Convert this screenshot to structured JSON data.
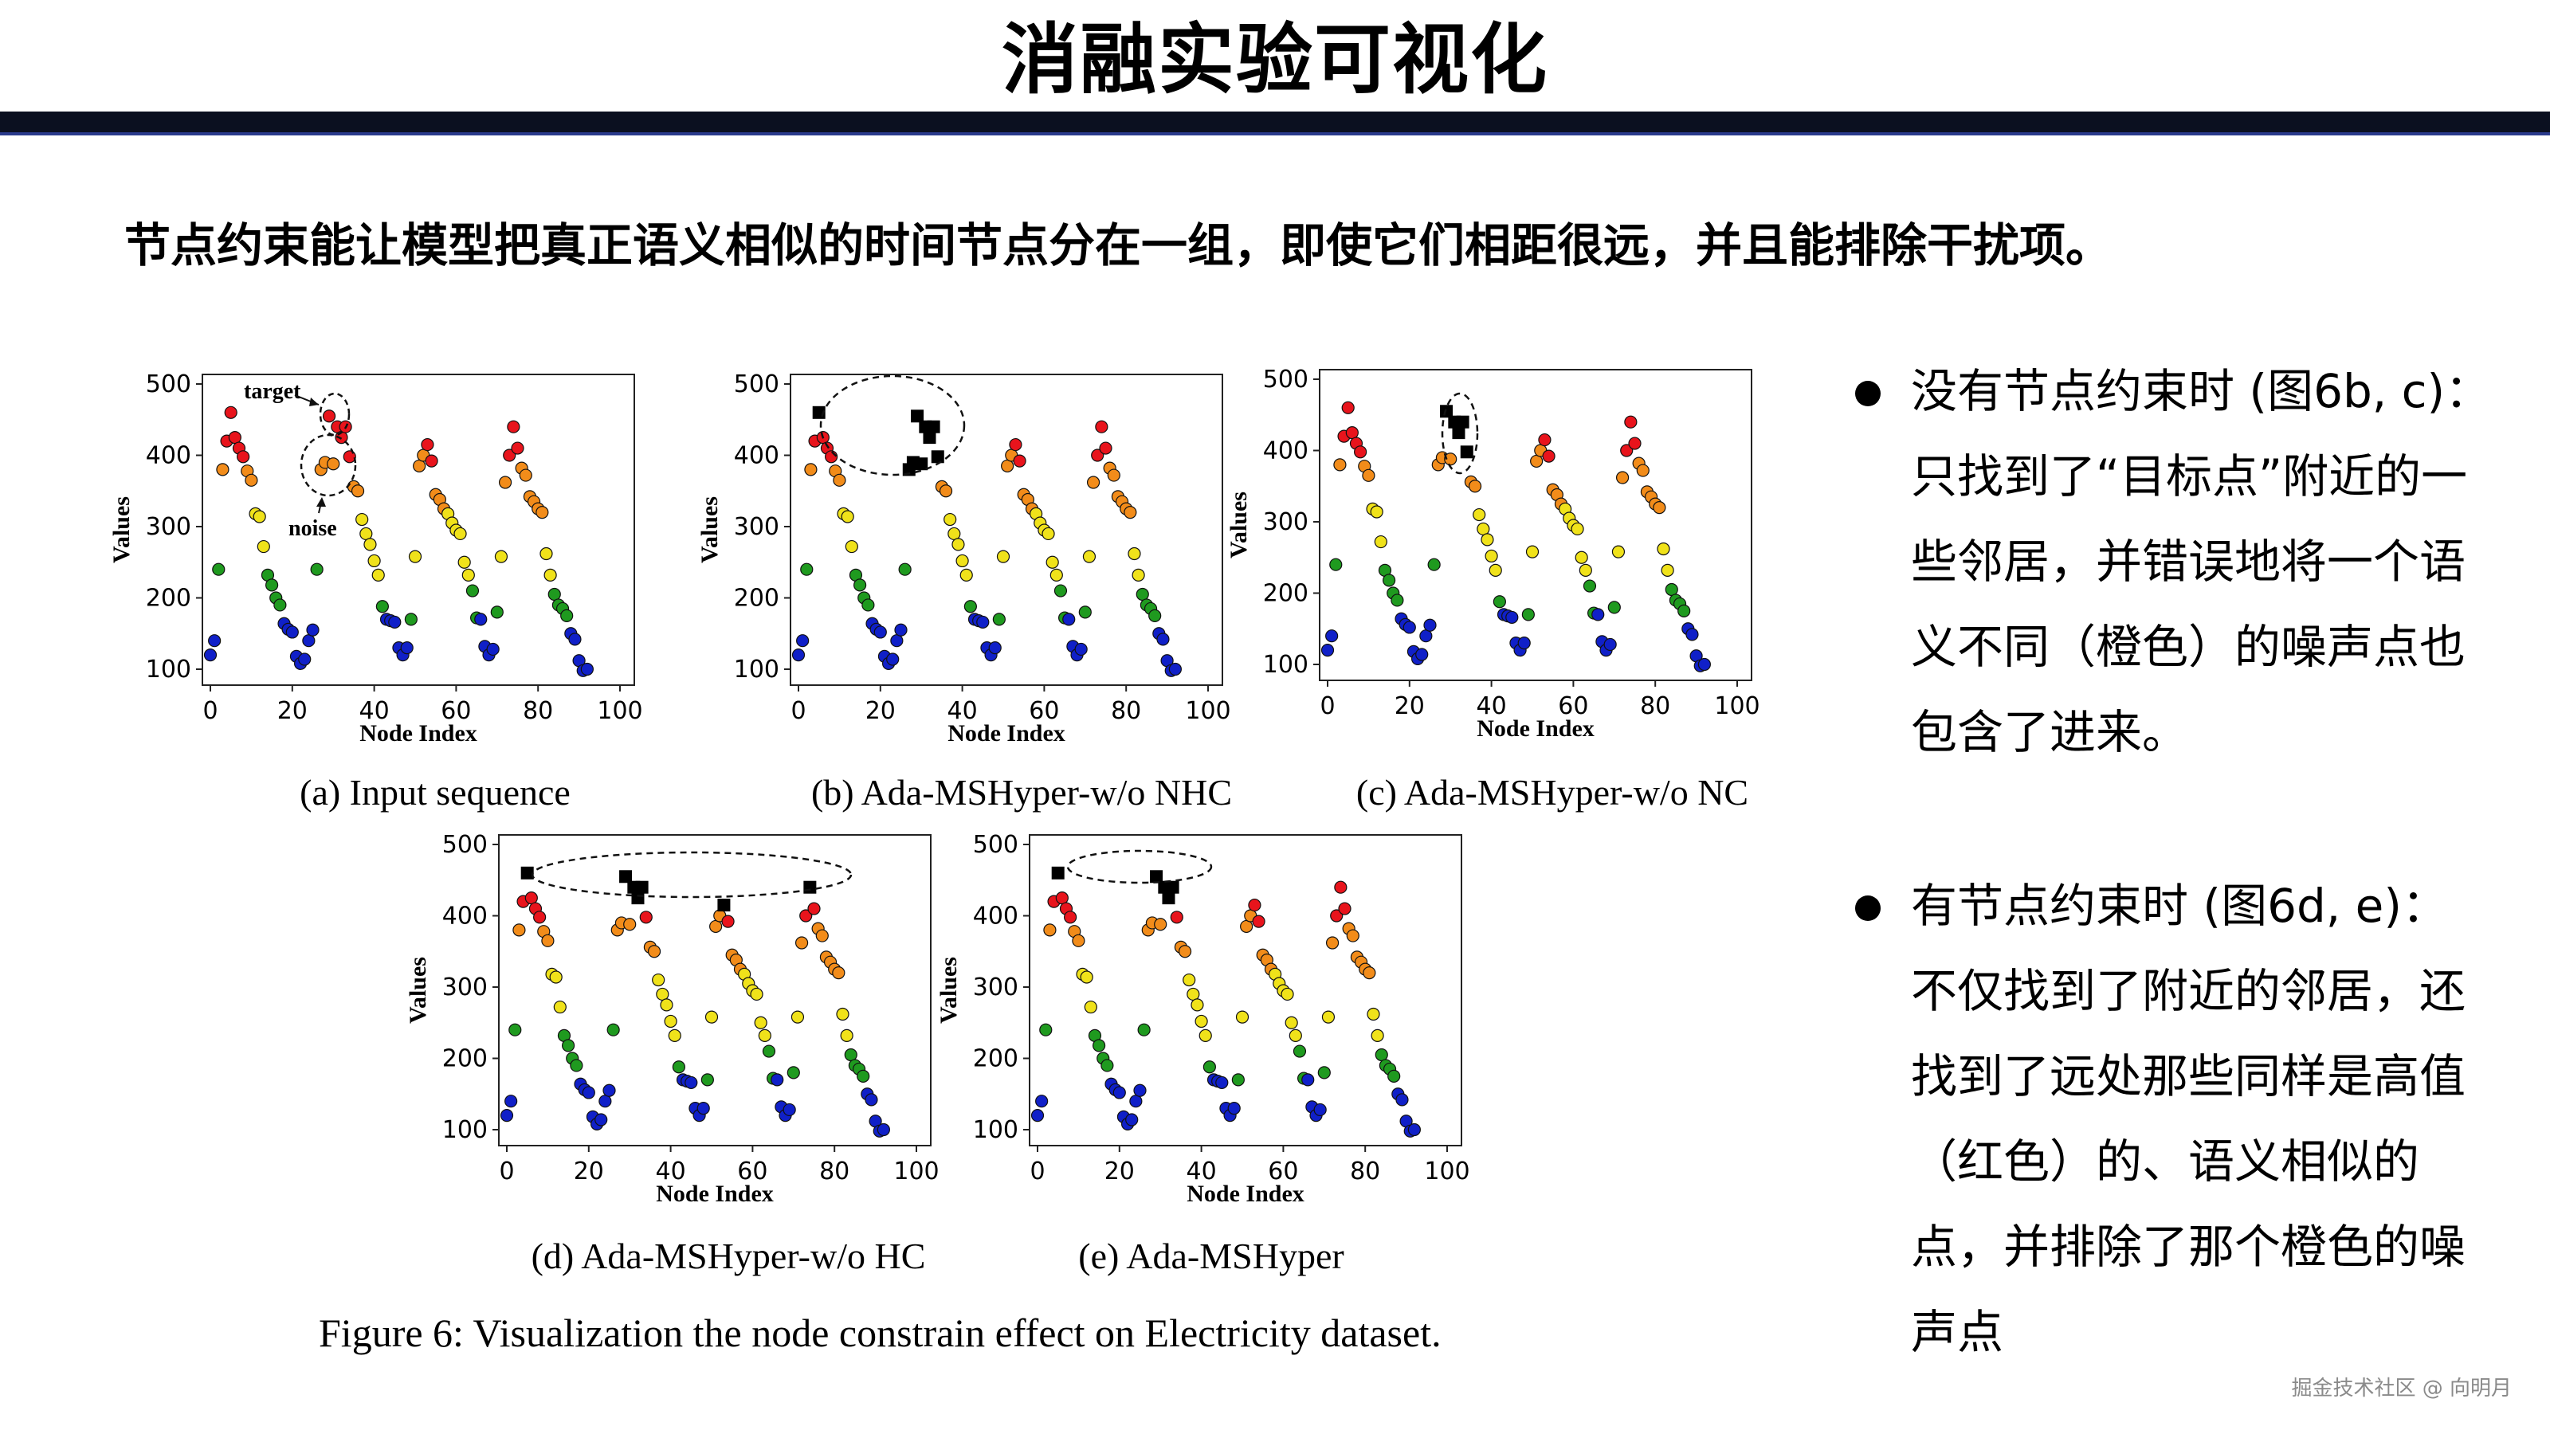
{
  "slide": {
    "title": "消融实验可视化",
    "subtitle": "节点约束能让模型把真正语义相似的时间节点分在一组，即使它们相距很远，并且能排除干扰项。",
    "bullets": [
      "没有节点约束时 (图6b, c)：只找到了“目标点”附近的一些邻居，并错误地将一个语义不同（橙色）的噪声点也包含了进来。",
      "有节点约束时 (图6d, e)：不仅找到了附近的邻居，还找到了远处那些同样是高值（红色）的、语义相似的点，并排除了那个橙色的噪声点"
    ],
    "figure_caption": "Figure 6: Visualization the node constrain effect on Electricity dataset.",
    "watermark": "掘金技术社区 @ 向明月"
  },
  "colors": {
    "red": "#e8141c",
    "orange": "#f28c1a",
    "yellow": "#f0e21a",
    "green": "#1f9a1f",
    "blue": "#1020c8",
    "black": "#000000"
  },
  "chart_data": {
    "type": "scatter",
    "x_range": [
      0,
      100
    ],
    "y_range": [
      100,
      500
    ],
    "xticks": [
      0,
      20,
      40,
      60,
      80,
      100
    ],
    "yticks": [
      100,
      200,
      300,
      400,
      500
    ],
    "xlabel": "Node Index",
    "ylabel": "Values",
    "points": [
      {
        "x": 0,
        "y": 120,
        "c": "blue"
      },
      {
        "x": 1,
        "y": 140,
        "c": "blue"
      },
      {
        "x": 2,
        "y": 240,
        "c": "green"
      },
      {
        "x": 3,
        "y": 380,
        "c": "orange"
      },
      {
        "x": 4,
        "y": 420,
        "c": "red"
      },
      {
        "x": 5,
        "y": 460,
        "c": "red"
      },
      {
        "x": 6,
        "y": 425,
        "c": "red"
      },
      {
        "x": 7,
        "y": 410,
        "c": "red"
      },
      {
        "x": 8,
        "y": 398,
        "c": "red"
      },
      {
        "x": 9,
        "y": 378,
        "c": "orange"
      },
      {
        "x": 10,
        "y": 365,
        "c": "orange"
      },
      {
        "x": 11,
        "y": 318,
        "c": "yellow"
      },
      {
        "x": 12,
        "y": 314,
        "c": "yellow"
      },
      {
        "x": 13,
        "y": 272,
        "c": "yellow"
      },
      {
        "x": 14,
        "y": 232,
        "c": "green"
      },
      {
        "x": 15,
        "y": 218,
        "c": "green"
      },
      {
        "x": 16,
        "y": 200,
        "c": "green"
      },
      {
        "x": 17,
        "y": 190,
        "c": "green"
      },
      {
        "x": 18,
        "y": 164,
        "c": "blue"
      },
      {
        "x": 19,
        "y": 156,
        "c": "blue"
      },
      {
        "x": 20,
        "y": 152,
        "c": "blue"
      },
      {
        "x": 21,
        "y": 118,
        "c": "blue"
      },
      {
        "x": 22,
        "y": 108,
        "c": "blue"
      },
      {
        "x": 23,
        "y": 114,
        "c": "blue"
      },
      {
        "x": 24,
        "y": 140,
        "c": "blue"
      },
      {
        "x": 25,
        "y": 155,
        "c": "blue"
      },
      {
        "x": 26,
        "y": 240,
        "c": "green"
      },
      {
        "x": 27,
        "y": 380,
        "c": "orange"
      },
      {
        "x": 28,
        "y": 390,
        "c": "orange"
      },
      {
        "x": 29,
        "y": 455,
        "c": "red"
      },
      {
        "x": 30,
        "y": 388,
        "c": "orange"
      },
      {
        "x": 31,
        "y": 440,
        "c": "red"
      },
      {
        "x": 32,
        "y": 425,
        "c": "red"
      },
      {
        "x": 33,
        "y": 440,
        "c": "red"
      },
      {
        "x": 34,
        "y": 398,
        "c": "red"
      },
      {
        "x": 35,
        "y": 356,
        "c": "orange"
      },
      {
        "x": 36,
        "y": 350,
        "c": "orange"
      },
      {
        "x": 37,
        "y": 310,
        "c": "yellow"
      },
      {
        "x": 38,
        "y": 290,
        "c": "yellow"
      },
      {
        "x": 39,
        "y": 275,
        "c": "yellow"
      },
      {
        "x": 40,
        "y": 252,
        "c": "yellow"
      },
      {
        "x": 41,
        "y": 232,
        "c": "yellow"
      },
      {
        "x": 42,
        "y": 188,
        "c": "green"
      },
      {
        "x": 43,
        "y": 170,
        "c": "blue"
      },
      {
        "x": 44,
        "y": 168,
        "c": "blue"
      },
      {
        "x": 45,
        "y": 166,
        "c": "blue"
      },
      {
        "x": 46,
        "y": 130,
        "c": "blue"
      },
      {
        "x": 47,
        "y": 120,
        "c": "blue"
      },
      {
        "x": 48,
        "y": 130,
        "c": "blue"
      },
      {
        "x": 49,
        "y": 170,
        "c": "green"
      },
      {
        "x": 50,
        "y": 258,
        "c": "yellow"
      },
      {
        "x": 51,
        "y": 385,
        "c": "orange"
      },
      {
        "x": 52,
        "y": 400,
        "c": "orange"
      },
      {
        "x": 53,
        "y": 415,
        "c": "red"
      },
      {
        "x": 54,
        "y": 392,
        "c": "red"
      },
      {
        "x": 55,
        "y": 345,
        "c": "orange"
      },
      {
        "x": 56,
        "y": 338,
        "c": "orange"
      },
      {
        "x": 57,
        "y": 325,
        "c": "orange"
      },
      {
        "x": 58,
        "y": 318,
        "c": "yellow"
      },
      {
        "x": 59,
        "y": 305,
        "c": "yellow"
      },
      {
        "x": 60,
        "y": 295,
        "c": "yellow"
      },
      {
        "x": 61,
        "y": 290,
        "c": "yellow"
      },
      {
        "x": 62,
        "y": 250,
        "c": "yellow"
      },
      {
        "x": 63,
        "y": 232,
        "c": "yellow"
      },
      {
        "x": 64,
        "y": 210,
        "c": "green"
      },
      {
        "x": 65,
        "y": 172,
        "c": "green"
      },
      {
        "x": 66,
        "y": 170,
        "c": "blue"
      },
      {
        "x": 67,
        "y": 132,
        "c": "blue"
      },
      {
        "x": 68,
        "y": 120,
        "c": "blue"
      },
      {
        "x": 69,
        "y": 128,
        "c": "blue"
      },
      {
        "x": 70,
        "y": 180,
        "c": "green"
      },
      {
        "x": 71,
        "y": 258,
        "c": "yellow"
      },
      {
        "x": 72,
        "y": 362,
        "c": "orange"
      },
      {
        "x": 73,
        "y": 400,
        "c": "red"
      },
      {
        "x": 74,
        "y": 440,
        "c": "red"
      },
      {
        "x": 75,
        "y": 410,
        "c": "red"
      },
      {
        "x": 76,
        "y": 382,
        "c": "orange"
      },
      {
        "x": 77,
        "y": 372,
        "c": "orange"
      },
      {
        "x": 78,
        "y": 342,
        "c": "orange"
      },
      {
        "x": 79,
        "y": 335,
        "c": "orange"
      },
      {
        "x": 80,
        "y": 325,
        "c": "orange"
      },
      {
        "x": 81,
        "y": 320,
        "c": "orange"
      },
      {
        "x": 82,
        "y": 262,
        "c": "yellow"
      },
      {
        "x": 83,
        "y": 232,
        "c": "yellow"
      },
      {
        "x": 84,
        "y": 205,
        "c": "green"
      },
      {
        "x": 85,
        "y": 190,
        "c": "green"
      },
      {
        "x": 86,
        "y": 185,
        "c": "green"
      },
      {
        "x": 87,
        "y": 175,
        "c": "green"
      },
      {
        "x": 88,
        "y": 150,
        "c": "blue"
      },
      {
        "x": 89,
        "y": 142,
        "c": "blue"
      },
      {
        "x": 90,
        "y": 112,
        "c": "blue"
      },
      {
        "x": 91,
        "y": 98,
        "c": "blue"
      },
      {
        "x": 92,
        "y": 100,
        "c": "blue"
      }
    ],
    "subplots": [
      {
        "caption": "(a) Input sequence",
        "selected": [],
        "annotations": [
          "target",
          "noise"
        ]
      },
      {
        "caption": "(b) Ada-MSHyper-w/o NHC",
        "selected": [
          5,
          27,
          28,
          29,
          30,
          31,
          32,
          33,
          34
        ],
        "annotations": []
      },
      {
        "caption": "(c) Ada-MSHyper-w/o NC",
        "selected": [
          29,
          31,
          32,
          33,
          34
        ],
        "annotations": []
      },
      {
        "caption": "(d) Ada-MSHyper-w/o HC",
        "selected": [
          5,
          29,
          31,
          32,
          33,
          53,
          74
        ],
        "annotations": []
      },
      {
        "caption": "(e) Ada-MSHyper",
        "selected": [
          5,
          29,
          31,
          32,
          33
        ],
        "annotations": []
      }
    ]
  }
}
